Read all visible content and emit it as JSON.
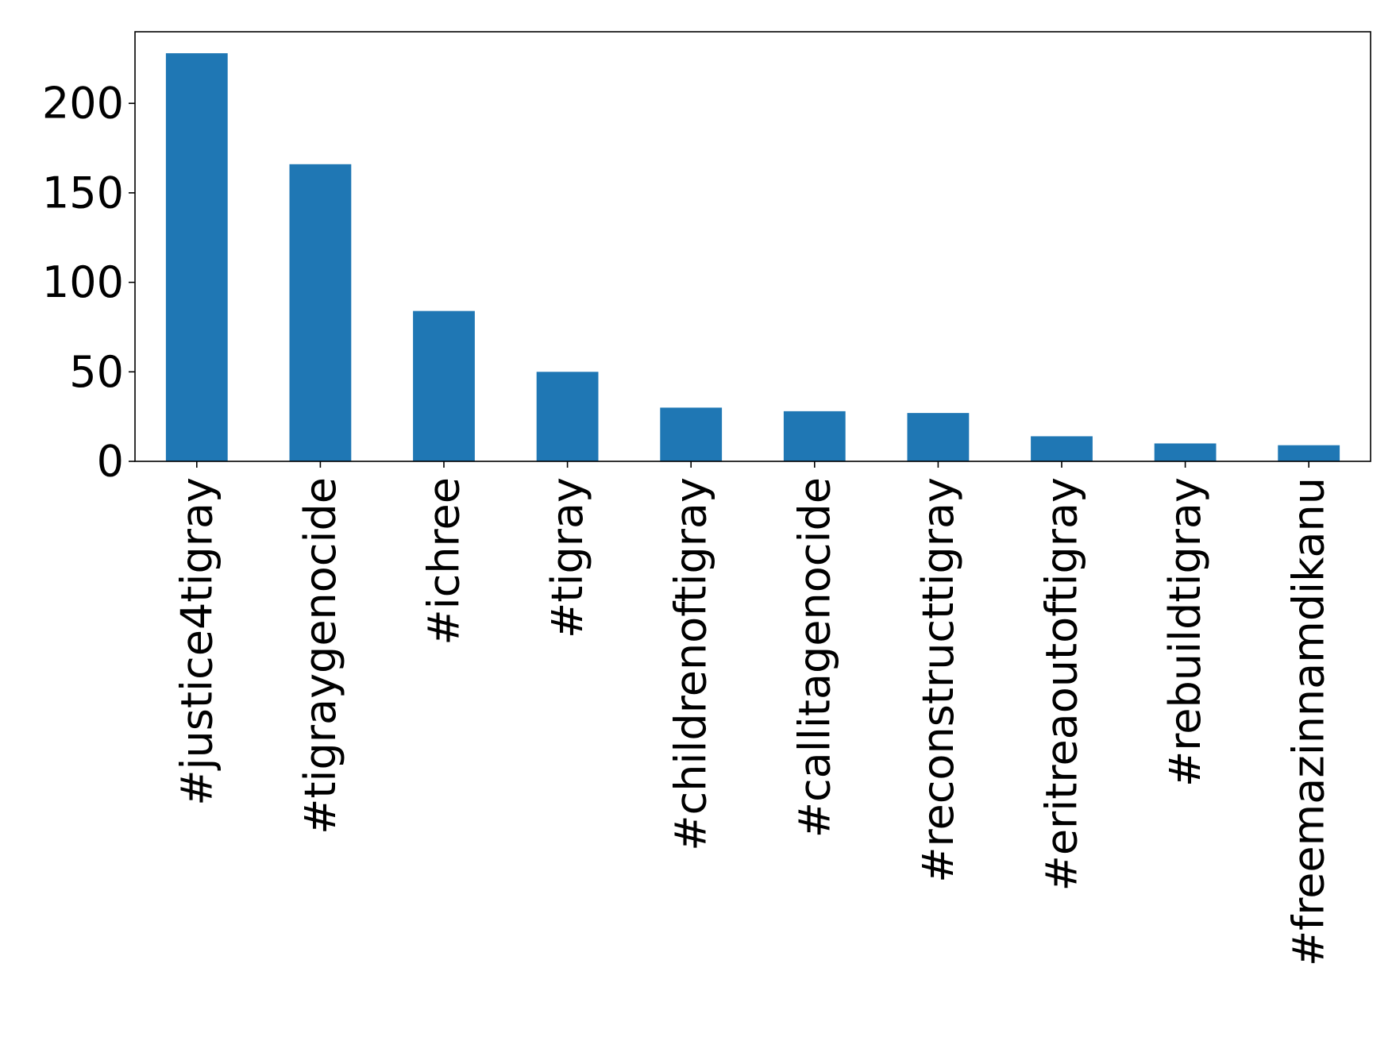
{
  "chart_data": {
    "type": "bar",
    "title": "",
    "xlabel": "",
    "ylabel": "",
    "categories": [
      "#justice4tigray",
      "#tigraygenocide",
      "#ichree",
      "#tigray",
      "#childrenoftigray",
      "#callitagenocide",
      "#reconstructtigray",
      "#eritreaoutoftigray",
      "#rebuildtigray",
      "#freemazinnamdikanu"
    ],
    "values": [
      228,
      166,
      84,
      50,
      30,
      28,
      27,
      14,
      10,
      9
    ],
    "ylim": [
      0,
      240
    ],
    "yticks": [
      0,
      50,
      100,
      150,
      200
    ],
    "bar_color": "#1f77b4",
    "grid": false,
    "legend": "none"
  }
}
